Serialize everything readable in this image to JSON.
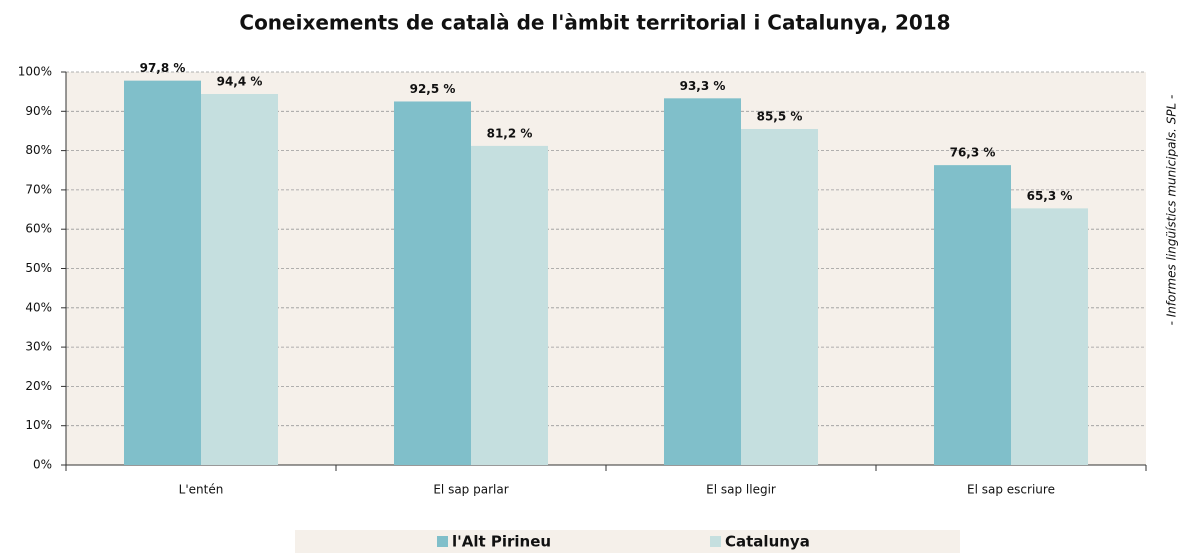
{
  "chart_data": {
    "type": "bar",
    "title": "Coneixements de català de l'àmbit territorial i Catalunya, 2018",
    "side_note": "- Informes lingüístics municipals. SPL -",
    "categories": [
      "L'entén",
      "El sap parlar",
      "El sap llegir",
      "El sap escriure"
    ],
    "series": [
      {
        "name": "l'Alt Pirineu",
        "color": "#80bfca",
        "values": [
          97.8,
          92.5,
          93.3,
          76.3
        ],
        "value_labels": [
          "97,8 %",
          "92,5 %",
          "93,3 %",
          "76,3 %"
        ]
      },
      {
        "name": "Catalunya",
        "color": "#c5dfdf",
        "values": [
          94.4,
          81.2,
          85.5,
          65.3
        ],
        "value_labels": [
          "94,4 %",
          "81,2 %",
          "85,5 %",
          "65,3 %"
        ]
      }
    ],
    "ylim": [
      0,
      100
    ],
    "yticks": [
      {
        "value": 0,
        "label": "0%"
      },
      {
        "value": 10,
        "label": "10%"
      },
      {
        "value": 20,
        "label": "20%"
      },
      {
        "value": 30,
        "label": "30%"
      },
      {
        "value": 40,
        "label": "40%"
      },
      {
        "value": 50,
        "label": "50%"
      },
      {
        "value": 60,
        "label": "60%"
      },
      {
        "value": 70,
        "label": "70%"
      },
      {
        "value": 80,
        "label": "80%"
      },
      {
        "value": 90,
        "label": "90%"
      },
      {
        "value": 100,
        "label": "100%"
      }
    ],
    "grid": true
  }
}
